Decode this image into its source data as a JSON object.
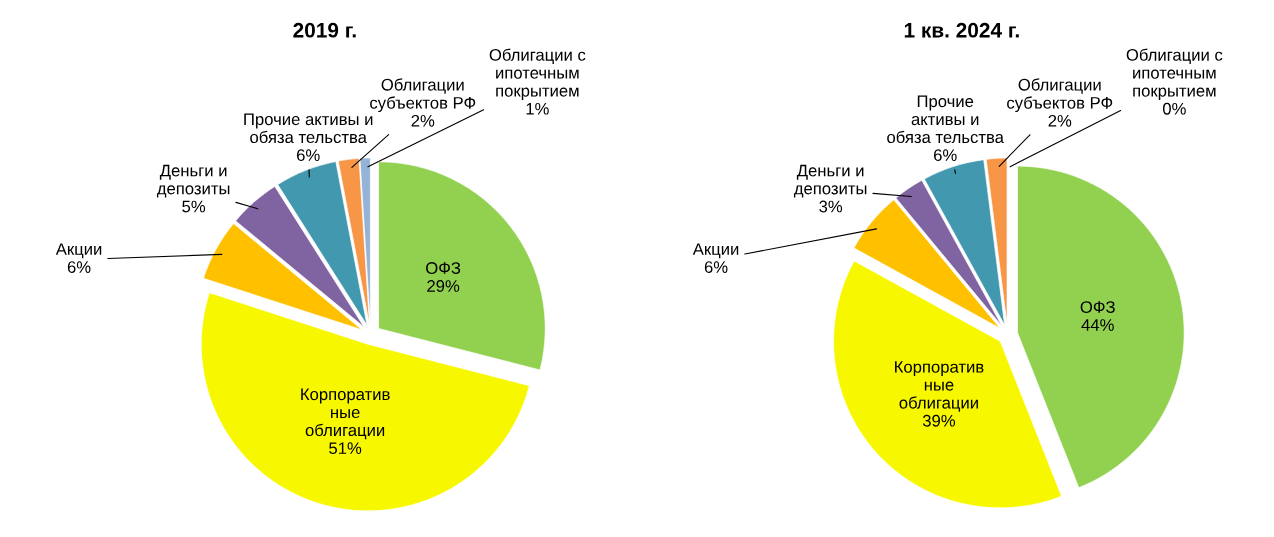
{
  "chart_data": [
    {
      "type": "pie",
      "title": "2019 г.",
      "categories": [
        "ОФЗ",
        "Корпоратив\nные\nоблигации",
        "Акции",
        "Деньги и\nдепозиты",
        "Прочие активы и\nобяза тельства",
        "Облигации\nсубъектов РФ",
        "Облигации с\nипотечным\nпокрытием"
      ],
      "values": [
        29,
        51,
        6,
        5,
        6,
        2,
        1
      ],
      "colors": [
        "#92d050",
        "#f7f700",
        "#ffc000",
        "#8064a2",
        "#4198af",
        "#f79646",
        "#95b3d7"
      ],
      "value_labels": [
        "29%",
        "51%",
        "6%",
        "5%",
        "6%",
        "2%",
        "1%"
      ]
    },
    {
      "type": "pie",
      "title": "1 кв. 2024 г.",
      "categories": [
        "ОФЗ",
        "Корпоратив\nные\nоблигации",
        "Акции",
        "Деньги и\nдепозиты",
        "Прочие\nактивы и\nобяза тельства",
        "Облигации\nсубъектов РФ",
        "Облигации с\nипотечным\nпокрытием"
      ],
      "values": [
        44,
        39,
        6,
        3,
        6,
        2,
        0
      ],
      "colors": [
        "#92d050",
        "#f7f700",
        "#ffc000",
        "#8064a2",
        "#4198af",
        "#f79646",
        "#95b3d7"
      ],
      "value_labels": [
        "44%",
        "39%",
        "6%",
        "3%",
        "6%",
        "2%",
        "0%"
      ]
    }
  ]
}
